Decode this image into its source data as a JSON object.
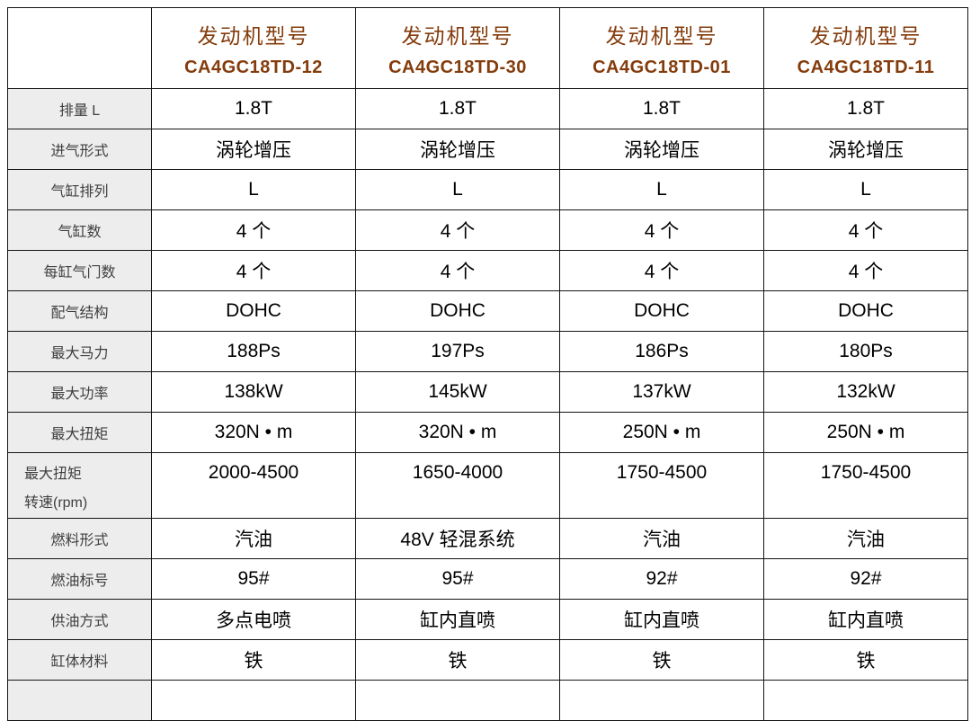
{
  "colors": {
    "accent": "#843c0c",
    "label_bg": "#ededed",
    "border": "#141414",
    "label_text": "#3f3f3f",
    "value_text": "#000000",
    "page_bg": "#ffffff"
  },
  "table": {
    "corner_label": "",
    "columns": [
      {
        "title": "发动机型号",
        "model": "CA4GC18TD-12"
      },
      {
        "title": "发动机型号",
        "model": "CA4GC18TD-30"
      },
      {
        "title": "发动机型号",
        "model": "CA4GC18TD-01"
      },
      {
        "title": "发动机型号",
        "model": "CA4GC18TD-11"
      }
    ],
    "rows": [
      {
        "label": "排量 L",
        "values": [
          "1.8T",
          "1.8T",
          "1.8T",
          "1.8T"
        ]
      },
      {
        "label": "进气形式",
        "values": [
          "涡轮增压",
          "涡轮增压",
          "涡轮增压",
          "涡轮增压"
        ]
      },
      {
        "label": "气缸排列",
        "values": [
          "L",
          "L",
          "L",
          "L"
        ]
      },
      {
        "label": "气缸数",
        "values": [
          "4 个",
          "4 个",
          "4 个",
          "4 个"
        ]
      },
      {
        "label": "每缸气门数",
        "values": [
          "4 个",
          "4 个",
          "4 个",
          "4 个"
        ]
      },
      {
        "label": "配气结构",
        "values": [
          "DOHC",
          "DOHC",
          "DOHC",
          "DOHC"
        ]
      },
      {
        "label": "最大马力",
        "values": [
          "188Ps",
          "197Ps",
          "186Ps",
          "180Ps"
        ]
      },
      {
        "label": "最大功率",
        "values": [
          "138kW",
          "145kW",
          "137kW",
          "132kW"
        ]
      },
      {
        "label": "最大扭矩",
        "values": [
          "320N • m",
          "320N • m",
          "250N • m",
          "250N • m"
        ]
      },
      {
        "label": "最大扭矩\n转速(rpm)",
        "values": [
          "2000-4500",
          "1650-4000",
          "1750-4500",
          "1750-4500"
        ]
      },
      {
        "label": "燃料形式",
        "values": [
          "汽油",
          "48V 轻混系统",
          "汽油",
          "汽油"
        ]
      },
      {
        "label": "燃油标号",
        "values": [
          "95#",
          "95#",
          "92#",
          "92#"
        ]
      },
      {
        "label": "供油方式",
        "values": [
          "多点电喷",
          "缸内直喷",
          "缸内直喷",
          "缸内直喷"
        ]
      },
      {
        "label": "缸体材料",
        "values": [
          "铁",
          "铁",
          "铁",
          "铁"
        ]
      },
      {
        "label": "",
        "values": [
          "",
          "",
          "",
          ""
        ]
      }
    ]
  }
}
